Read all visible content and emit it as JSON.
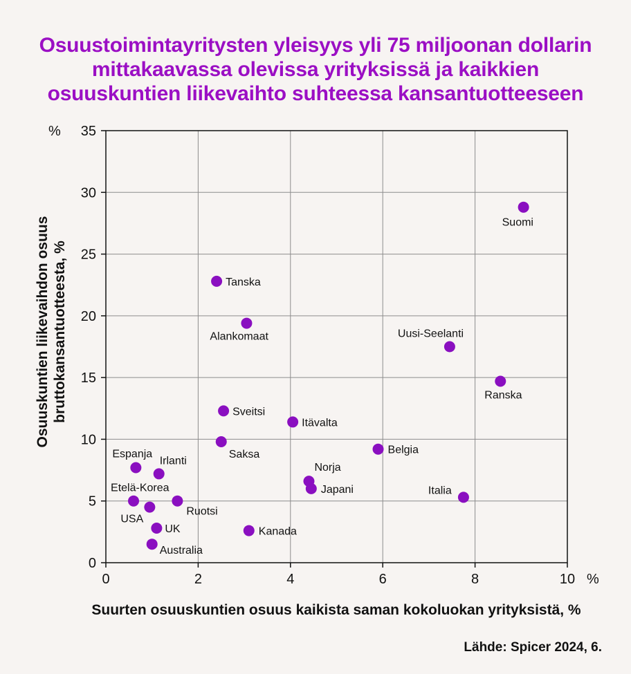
{
  "title_lines": [
    "Osuustoimintayritysten yleisyys yli 75 miljoonan dollarin",
    "mittakaavassa olevissa yrityksissä ja kaikkien",
    "osuuskuntien liikevaihto suhteessa kansantuotteeseen"
  ],
  "source": "Lähde: Spicer 2024, 6.",
  "colors": {
    "title": "#9b0fc4",
    "points": "#8a0fc0",
    "grid": "#8c8c8c",
    "background": "#f7f4f2"
  },
  "chart_data": {
    "type": "scatter",
    "xlabel": "Suurten osuuskuntien osuus kaikista saman kokoluokan yrityksistä, %",
    "ylabel_lines": [
      "Osuuskuntien liikevaihdon osuus",
      "bruttokansantuotteesta, %"
    ],
    "x_unit": "%",
    "y_unit": "%",
    "xlim": [
      0,
      10
    ],
    "ylim": [
      0,
      35
    ],
    "xticks": [
      0,
      2,
      4,
      6,
      8,
      10
    ],
    "yticks": [
      0,
      5,
      10,
      15,
      20,
      25,
      30,
      35
    ],
    "grid": true,
    "points": [
      {
        "label": "Suomi",
        "x": 9.05,
        "y": 28.8
      },
      {
        "label": "Tanska",
        "x": 2.4,
        "y": 22.8
      },
      {
        "label": "Alankomaat",
        "x": 3.05,
        "y": 19.4
      },
      {
        "label": "Uusi-Seelanti",
        "x": 7.45,
        "y": 17.5
      },
      {
        "label": "Ranska",
        "x": 8.55,
        "y": 14.7
      },
      {
        "label": "Sveitsi",
        "x": 2.55,
        "y": 12.3
      },
      {
        "label": "Itävalta",
        "x": 4.05,
        "y": 11.4
      },
      {
        "label": "Saksa",
        "x": 2.5,
        "y": 9.8
      },
      {
        "label": "Belgia",
        "x": 5.9,
        "y": 9.2
      },
      {
        "label": "Espanja",
        "x": 0.65,
        "y": 7.7
      },
      {
        "label": "Irlanti",
        "x": 1.15,
        "y": 7.2
      },
      {
        "label": "Norja",
        "x": 4.4,
        "y": 6.6
      },
      {
        "label": "Japani",
        "x": 4.45,
        "y": 6.0
      },
      {
        "label": "Italia",
        "x": 7.75,
        "y": 5.3
      },
      {
        "label": "Etelä-Korea",
        "x": 0.6,
        "y": 5.0
      },
      {
        "label": "Ruotsi",
        "x": 1.55,
        "y": 5.0
      },
      {
        "label": "USA",
        "x": 0.95,
        "y": 4.5
      },
      {
        "label": "UK",
        "x": 1.1,
        "y": 2.8
      },
      {
        "label": "Kanada",
        "x": 3.1,
        "y": 2.6
      },
      {
        "label": "Australia",
        "x": 1.0,
        "y": 1.5
      }
    ]
  }
}
